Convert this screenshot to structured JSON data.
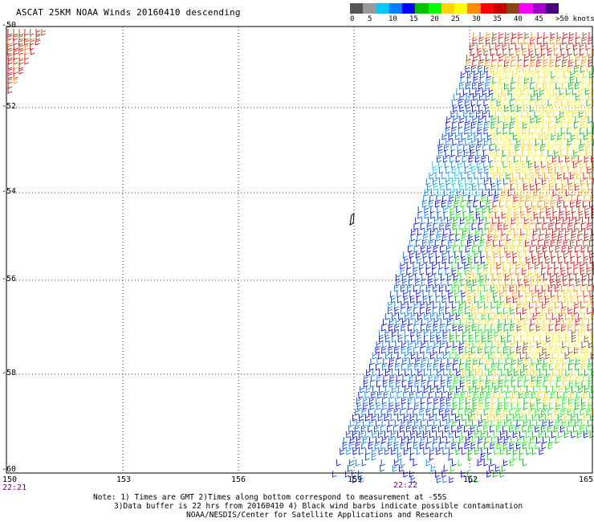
{
  "title": "ASCAT 25KM NOAA Winds 20160410 descending",
  "legend": {
    "colors": [
      "#555555",
      "#999999",
      "#00c8ff",
      "#0080ff",
      "#0000ff",
      "#00c000",
      "#00ff00",
      "#ffd700",
      "#ffff00",
      "#ff8c00",
      "#ff0000",
      "#c80000",
      "#8b4513",
      "#ff00ff",
      "#a000c8",
      "#4b0082"
    ],
    "labels": [
      "0",
      "5",
      "10",
      "15",
      "20",
      "25",
      "30",
      "35",
      "40",
      "45",
      ">50 knots"
    ]
  },
  "map": {
    "lon_ticks": [
      "150",
      "153",
      "156",
      "159",
      "162",
      "165"
    ],
    "lat_ticks": [
      "-50",
      "-52",
      "-54",
      "-56",
      "-58",
      "-60"
    ],
    "time_labels": [
      "22:21",
      "22:22"
    ]
  },
  "notes": [
    "Note: 1) Times are GMT 2)Times along bottom correspond to measurement at -55S",
    "3)Data buffer is 22 hrs from 20160410 4) Black wind barbs indicate possible contamination",
    "NOAA/NESDIS/Center for Satellite Applications and Research"
  ]
}
